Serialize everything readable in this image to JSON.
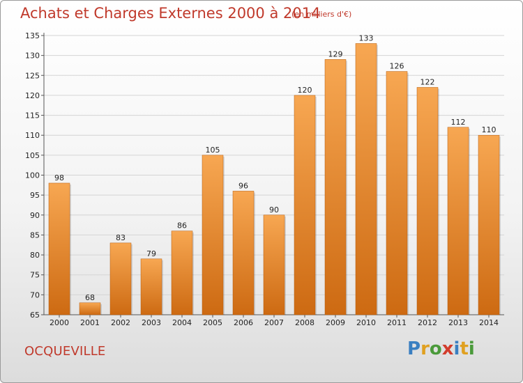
{
  "title": "Achats et Charges Externes 2000 à 2014",
  "subtitle": "(en milliers d'€)",
  "location": "OCQUEVILLE",
  "logo": {
    "text": "Proxiti",
    "letters": [
      {
        "ch": "P",
        "color": "#3a7fc1"
      },
      {
        "ch": "r",
        "color": "#e0a020"
      },
      {
        "ch": "o",
        "color": "#4a9a3a"
      },
      {
        "ch": "x",
        "color": "#d23c2c"
      },
      {
        "ch": "i",
        "color": "#3a7fc1"
      },
      {
        "ch": "t",
        "color": "#e0a020"
      },
      {
        "ch": "i",
        "color": "#4a9a3a"
      }
    ]
  },
  "colors": {
    "title": "#c0392b",
    "bar_light": "#f7a752",
    "bar_dark": "#cd6a12",
    "gridline": "#d4d4d4"
  },
  "chart_data": {
    "type": "bar",
    "title": "Achats et Charges Externes 2000 à 2014",
    "subtitle": "(en milliers d'€)",
    "xlabel": "",
    "ylabel": "",
    "categories": [
      "2000",
      "2001",
      "2002",
      "2003",
      "2004",
      "2005",
      "2006",
      "2007",
      "2008",
      "2009",
      "2010",
      "2011",
      "2012",
      "2013",
      "2014"
    ],
    "values": [
      98,
      68,
      83,
      79,
      86,
      105,
      96,
      90,
      120,
      129,
      133,
      126,
      122,
      112,
      110
    ],
    "ylim": [
      65,
      135
    ],
    "yticks": [
      65,
      70,
      75,
      80,
      85,
      90,
      95,
      100,
      105,
      110,
      115,
      120,
      125,
      130,
      135
    ],
    "grid": true,
    "legend": "none"
  }
}
